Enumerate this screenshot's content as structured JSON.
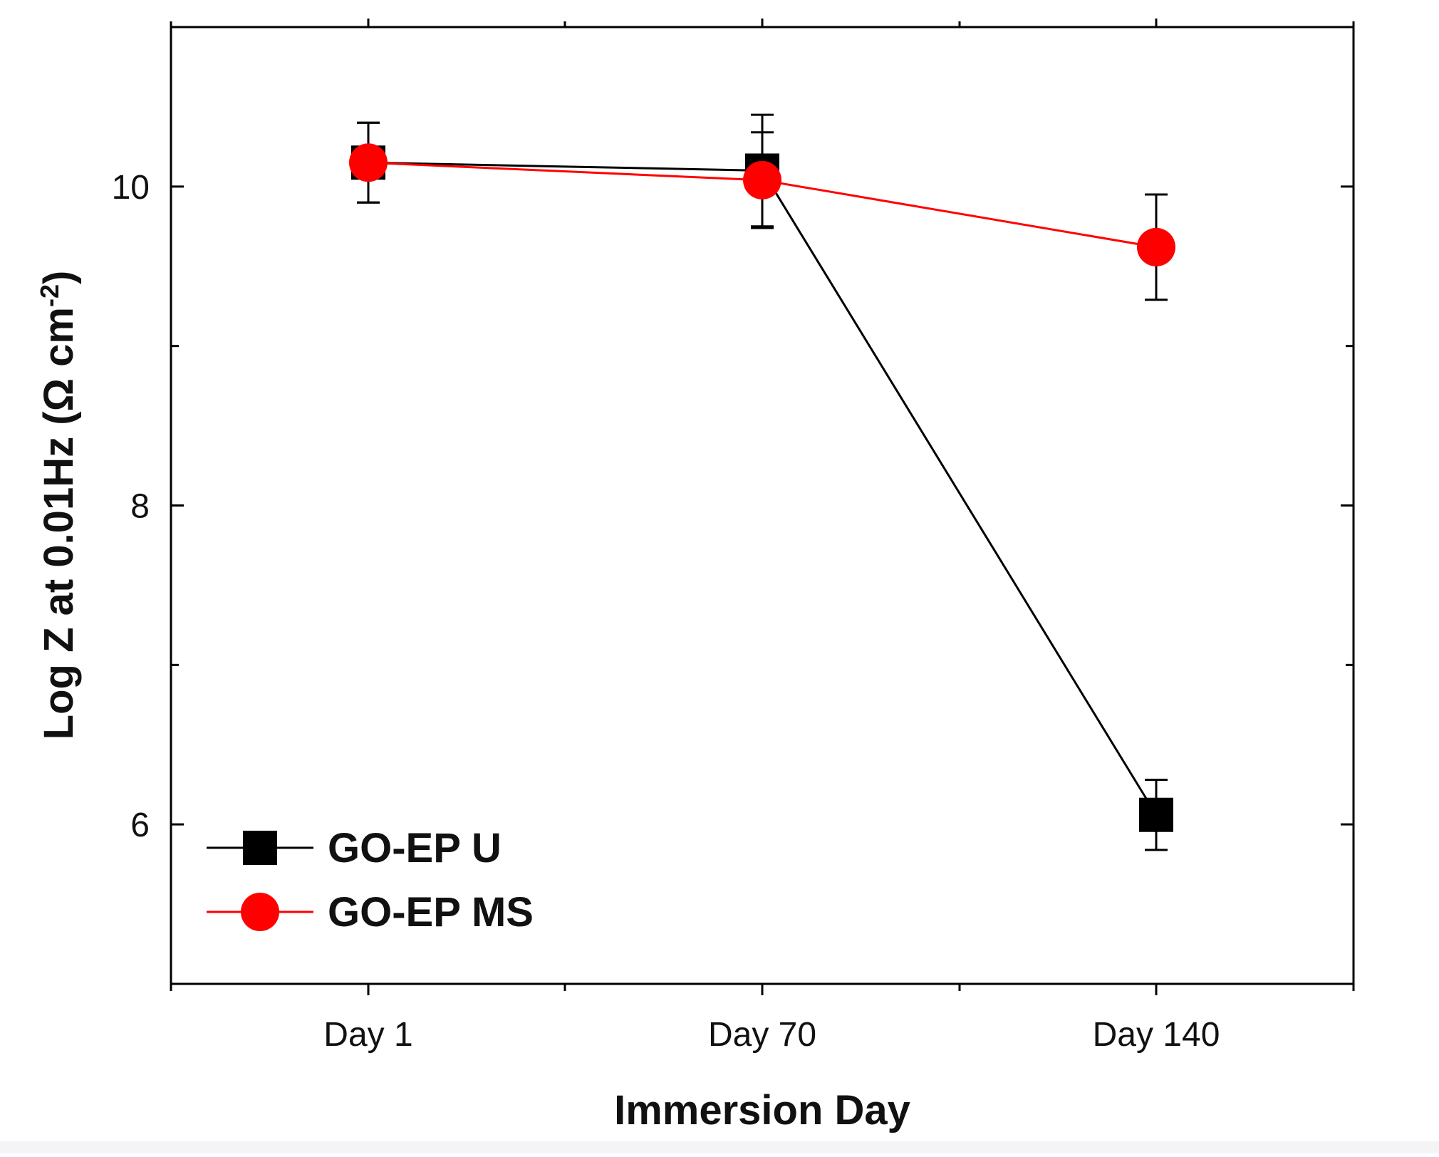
{
  "chart_data": {
    "type": "line",
    "title": "",
    "xlabel": "Immersion Day",
    "ylabel": "Log Z at 0.01Hz (Ω cm",
    "ylabel_sup": "-2",
    "ylabel_close": ")",
    "categories": [
      "Day 1",
      "Day 70",
      "Day 140"
    ],
    "ylim": [
      5.0,
      11.0
    ],
    "yticks": [
      6,
      8,
      10
    ],
    "ytick_labels": [
      "6",
      "8",
      "10"
    ],
    "grid": false,
    "legend_position": "bottom-left",
    "series": [
      {
        "name": "GO-EP U",
        "color": "#000000",
        "marker": "square",
        "values": [
          10.15,
          10.1,
          6.06
        ],
        "error": [
          0.25,
          0.35,
          0.22
        ]
      },
      {
        "name": "GO-EP MS",
        "color": "#ff0000",
        "marker": "circle",
        "values": [
          10.15,
          10.04,
          9.62
        ],
        "error": [
          0.25,
          0.3,
          0.33
        ]
      }
    ]
  }
}
